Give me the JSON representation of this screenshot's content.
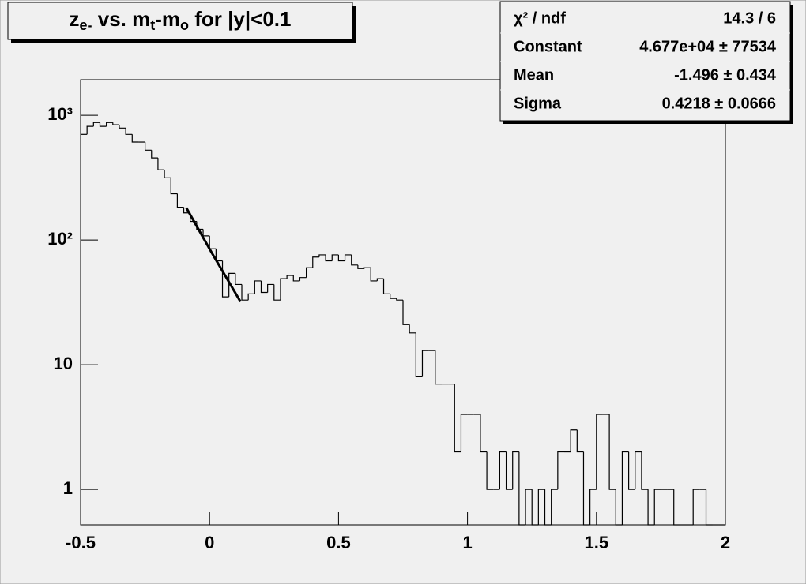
{
  "chart_data": {
    "type": "histogram",
    "title": [
      "z",
      "e-",
      " vs. m",
      "t",
      "-m",
      "o",
      " for |y|<0.1"
    ],
    "log_y": true,
    "color": "#000000",
    "bins": [
      -0.5,
      -0.475,
      -0.45,
      -0.425,
      -0.4,
      -0.375,
      -0.35,
      -0.325,
      -0.3,
      -0.275,
      -0.25,
      -0.225,
      -0.2,
      -0.175,
      -0.15,
      -0.125,
      -0.1,
      -0.075,
      -0.05,
      -0.025,
      0,
      0.025,
      0.05,
      0.075,
      0.1,
      0.125,
      0.15,
      0.175,
      0.2,
      0.225,
      0.25,
      0.275,
      0.3,
      0.325,
      0.35,
      0.375,
      0.4,
      0.425,
      0.45,
      0.475,
      0.5,
      0.525,
      0.55,
      0.575,
      0.6,
      0.625,
      0.65,
      0.675,
      0.7,
      0.725,
      0.75,
      0.775,
      0.8,
      0.825,
      0.85,
      0.875,
      0.9,
      0.925,
      0.95,
      0.975,
      1,
      1.025,
      1.05,
      1.075,
      1.1,
      1.125,
      1.15,
      1.175,
      1.2,
      1.225,
      1.25,
      1.275,
      1.3,
      1.325,
      1.35,
      1.375,
      1.4,
      1.425,
      1.45,
      1.475,
      1.5,
      1.525,
      1.55,
      1.575,
      1.6,
      1.625,
      1.65,
      1.675,
      1.7,
      1.725,
      1.75,
      1.775,
      1.8,
      1.825,
      1.85,
      1.875,
      1.9,
      1.925,
      1.95,
      1.975,
      2
    ],
    "values": [
      703,
      815,
      875,
      815,
      875,
      840,
      790,
      703,
      610,
      610,
      525,
      455,
      365,
      315,
      235,
      183,
      165,
      141,
      122,
      108,
      85,
      68,
      35,
      54,
      44,
      33,
      37,
      47,
      38,
      44,
      33,
      49,
      52,
      47,
      50,
      60,
      73,
      76,
      68,
      76,
      68,
      76,
      63,
      59,
      60,
      47,
      49,
      37,
      34,
      33,
      21,
      18,
      8,
      13,
      13,
      7,
      7,
      7,
      2,
      4,
      4,
      4,
      2,
      1,
      1,
      2,
      1,
      2,
      0,
      1,
      0,
      1,
      0,
      1,
      2,
      2,
      3,
      2,
      0,
      1,
      4,
      4,
      1,
      0,
      2,
      1,
      2,
      1,
      0,
      1,
      1,
      1,
      0,
      0,
      0,
      1,
      1,
      0,
      0,
      0
    ],
    "fit": {
      "x": [
        -0.09,
        0.01,
        0.12
      ],
      "values": [
        181,
        78,
        32
      ]
    },
    "xlim": [
      -0.5,
      2
    ],
    "xticks": [
      -0.5,
      0,
      0.5,
      1,
      1.5,
      2
    ],
    "ylim": [
      0.52,
      1930
    ],
    "yticks": [
      1,
      10,
      {
        "value": 100,
        "label": "10²"
      },
      {
        "value": 1000,
        "label": "10³"
      }
    ],
    "stats": [
      [
        "χ² / ndf",
        "14.3 / 6"
      ],
      [
        "Constant",
        "4.677e+04 ± 77534"
      ],
      [
        "Mean",
        "-1.496 ± 0.434"
      ],
      [
        "Sigma",
        "0.4218 ± 0.0666"
      ]
    ]
  }
}
